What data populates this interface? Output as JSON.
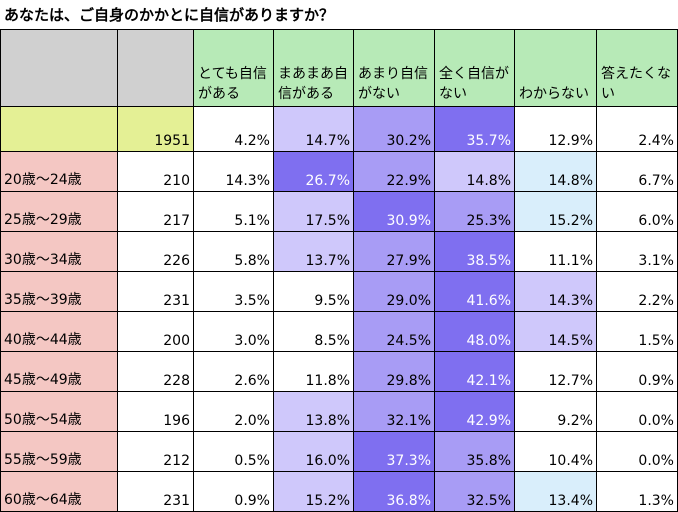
{
  "title": "あなたは、ご自身のかかとに自信がありますか？",
  "colors": {
    "header_gray": "#d0d0d0",
    "header_green": "#b7eab7",
    "total_yellow": "#e4f095",
    "label_pink": "#f4c7c3"
  },
  "chart_data": {
    "type": "table",
    "title": "あなたは、ご自身のかかとに自信がありますか？",
    "columns": [
      "",
      "",
      "とても自信がある",
      "まあまあ自信がある",
      "あまり自信がない",
      "全く自信がない",
      "わからない",
      "答えたくない"
    ],
    "total": {
      "label": "",
      "n": "1951",
      "values": [
        "4.2%",
        "14.7%",
        "30.2%",
        "35.7%",
        "12.9%",
        "2.4%"
      ]
    },
    "rows": [
      {
        "label": "20歳～24歳",
        "n": "210",
        "values": [
          "14.3%",
          "26.7%",
          "22.9%",
          "14.8%",
          "14.8%",
          "6.7%"
        ]
      },
      {
        "label": "25歳～29歳",
        "n": "217",
        "values": [
          "5.1%",
          "17.5%",
          "30.9%",
          "25.3%",
          "15.2%",
          "6.0%"
        ]
      },
      {
        "label": "30歳～34歳",
        "n": "226",
        "values": [
          "5.8%",
          "13.7%",
          "27.9%",
          "38.5%",
          "11.1%",
          "3.1%"
        ]
      },
      {
        "label": "35歳～39歳",
        "n": "231",
        "values": [
          "3.5%",
          "9.5%",
          "29.0%",
          "41.6%",
          "14.3%",
          "2.2%"
        ]
      },
      {
        "label": "40歳～44歳",
        "n": "200",
        "values": [
          "3.0%",
          "8.5%",
          "24.5%",
          "48.0%",
          "14.5%",
          "1.5%"
        ]
      },
      {
        "label": "45歳～49歳",
        "n": "228",
        "values": [
          "2.6%",
          "11.8%",
          "29.8%",
          "42.1%",
          "12.7%",
          "0.9%"
        ]
      },
      {
        "label": "50歳～54歳",
        "n": "196",
        "values": [
          "2.0%",
          "13.8%",
          "32.1%",
          "42.9%",
          "9.2%",
          "0.0%"
        ]
      },
      {
        "label": "55歳～59歳",
        "n": "212",
        "values": [
          "0.5%",
          "16.0%",
          "37.3%",
          "35.8%",
          "10.4%",
          "0.0%"
        ]
      },
      {
        "label": "60歳～64歳",
        "n": "231",
        "values": [
          "0.9%",
          "15.2%",
          "36.8%",
          "32.5%",
          "13.4%",
          "1.3%"
        ]
      }
    ]
  }
}
